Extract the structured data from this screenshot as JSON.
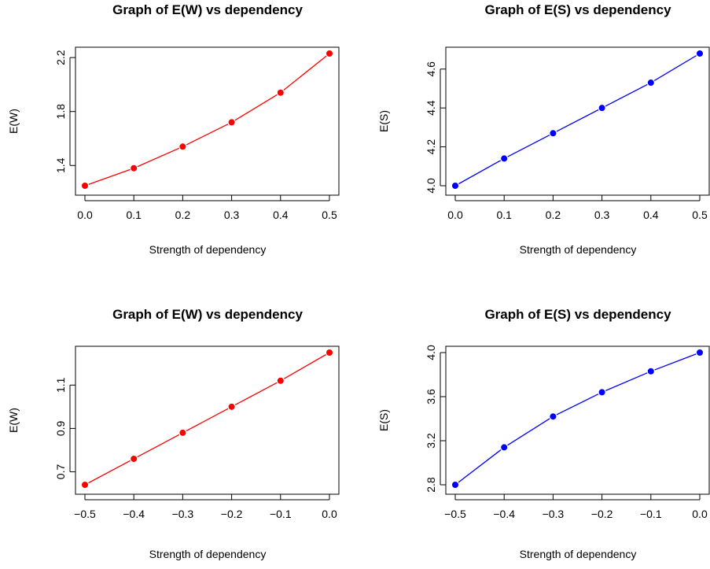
{
  "chart_data": [
    {
      "type": "line",
      "title": "Graph of E(W) vs dependency",
      "xlabel": "Strength of dependency",
      "ylabel": "E(W)",
      "x": [
        0.0,
        0.1,
        0.2,
        0.3,
        0.4,
        0.5
      ],
      "xticks": [
        "0.0",
        "0.1",
        "0.2",
        "0.3",
        "0.4",
        "0.5"
      ],
      "xlim": [
        0.0,
        0.5
      ],
      "yticks": [
        "1.4",
        "1.8",
        "2.2"
      ],
      "ylim": [
        1.25,
        2.23
      ],
      "series": [
        {
          "values": [
            1.25,
            1.38,
            1.54,
            1.72,
            1.94,
            2.23
          ],
          "color": "#ff0000"
        }
      ],
      "grid": false
    },
    {
      "type": "line",
      "title": "Graph of E(S) vs dependency",
      "xlabel": "Strength of dependency",
      "ylabel": "E(S)",
      "x": [
        0.0,
        0.1,
        0.2,
        0.3,
        0.4,
        0.5
      ],
      "xticks": [
        "0.0",
        "0.1",
        "0.2",
        "0.3",
        "0.4",
        "0.5"
      ],
      "xlim": [
        0.0,
        0.5
      ],
      "yticks": [
        "4.0",
        "4.2",
        "4.4",
        "4.6"
      ],
      "ylim": [
        4.0,
        4.68
      ],
      "series": [
        {
          "values": [
            4.0,
            4.14,
            4.27,
            4.4,
            4.53,
            4.68
          ],
          "color": "#0000ff"
        }
      ],
      "grid": false
    },
    {
      "type": "line",
      "title": "Graph of E(W) vs dependency",
      "xlabel": "Strength of dependency",
      "ylabel": "E(W)",
      "x": [
        -0.5,
        -0.4,
        -0.3,
        -0.2,
        -0.1,
        0.0
      ],
      "xticks": [
        "−0.5",
        "−0.4",
        "−0.3",
        "−0.2",
        "−0.1",
        "0.0"
      ],
      "xlim": [
        -0.5,
        0.0
      ],
      "yticks": [
        "0.7",
        "0.9",
        "1.1"
      ],
      "ylim": [
        0.64,
        1.25
      ],
      "series": [
        {
          "values": [
            0.64,
            0.76,
            0.88,
            1.0,
            1.12,
            1.25
          ],
          "color": "#ff0000"
        }
      ],
      "grid": false
    },
    {
      "type": "line",
      "title": "Graph of E(S) vs dependency",
      "xlabel": "Strength of dependency",
      "ylabel": "E(S)",
      "x": [
        -0.5,
        -0.4,
        -0.3,
        -0.2,
        -0.1,
        0.0
      ],
      "xticks": [
        "−0.5",
        "−0.4",
        "−0.3",
        "−0.2",
        "−0.1",
        "0.0"
      ],
      "xlim": [
        -0.5,
        0.0
      ],
      "yticks": [
        "2.8",
        "3.2",
        "3.6",
        "4.0"
      ],
      "ylim": [
        2.8,
        4.0
      ],
      "series": [
        {
          "values": [
            2.8,
            3.14,
            3.42,
            3.64,
            3.83,
            4.0
          ],
          "color": "#0000ff"
        }
      ],
      "grid": false
    }
  ]
}
